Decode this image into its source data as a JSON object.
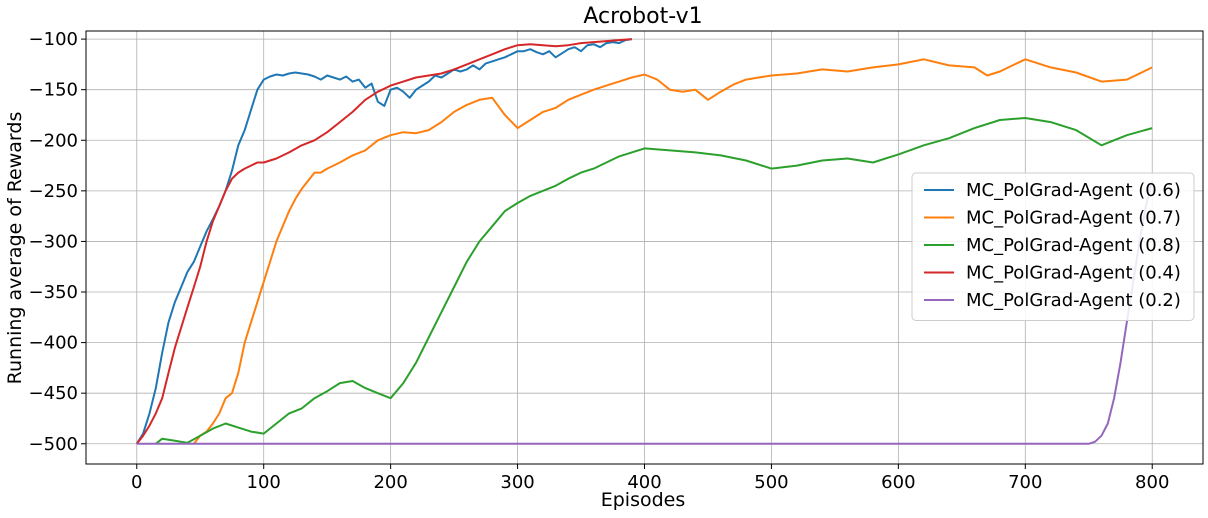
{
  "chart_data": {
    "type": "line",
    "title": "Acrobot-v1",
    "xlabel": "Episodes",
    "ylabel": "Running average of Rewards",
    "xlim": [
      -40,
      840
    ],
    "ylim": [
      -520,
      -92
    ],
    "xticks": [
      0,
      100,
      200,
      300,
      400,
      500,
      600,
      700,
      800
    ],
    "yticks": [
      -500,
      -450,
      -400,
      -350,
      -300,
      -250,
      -200,
      -150,
      -100
    ],
    "grid": true,
    "legend_position": "center-right",
    "series": [
      {
        "name": "MC_PolGrad-Agent (0.6)",
        "color": "#1f77b4",
        "x": [
          0,
          5,
          10,
          15,
          20,
          25,
          30,
          35,
          40,
          45,
          50,
          55,
          60,
          65,
          70,
          75,
          80,
          85,
          90,
          95,
          100,
          105,
          110,
          115,
          120,
          125,
          130,
          135,
          140,
          145,
          150,
          155,
          160,
          165,
          170,
          175,
          180,
          185,
          190,
          195,
          200,
          205,
          210,
          215,
          220,
          225,
          230,
          235,
          240,
          245,
          250,
          255,
          260,
          265,
          270,
          275,
          280,
          285,
          290,
          295,
          300,
          305,
          310,
          315,
          320,
          325,
          330,
          335,
          340,
          345,
          350,
          355,
          360,
          365,
          370,
          375,
          380,
          385,
          390
        ],
        "y": [
          -500,
          -490,
          -470,
          -445,
          -410,
          -380,
          -360,
          -345,
          -330,
          -320,
          -305,
          -290,
          -278,
          -265,
          -250,
          -230,
          -205,
          -190,
          -170,
          -150,
          -140,
          -137,
          -135,
          -136,
          -134,
          -133,
          -134,
          -135,
          -137,
          -140,
          -136,
          -138,
          -140,
          -137,
          -142,
          -140,
          -148,
          -144,
          -162,
          -166,
          -150,
          -148,
          -152,
          -158,
          -150,
          -146,
          -142,
          -136,
          -138,
          -134,
          -130,
          -132,
          -130,
          -126,
          -130,
          -124,
          -122,
          -120,
          -118,
          -115,
          -112,
          -112,
          -110,
          -113,
          -115,
          -112,
          -118,
          -114,
          -110,
          -108,
          -112,
          -106,
          -105,
          -108,
          -104,
          -103,
          -104,
          -101,
          -100
        ]
      },
      {
        "name": "MC_PolGrad-Agent (0.7)",
        "color": "#ff7f0e",
        "x": [
          45,
          50,
          55,
          60,
          65,
          70,
          75,
          80,
          85,
          90,
          95,
          100,
          105,
          110,
          115,
          120,
          125,
          130,
          135,
          140,
          145,
          150,
          160,
          170,
          180,
          190,
          200,
          210,
          220,
          230,
          240,
          250,
          260,
          270,
          280,
          290,
          300,
          310,
          320,
          330,
          340,
          350,
          360,
          370,
          380,
          390,
          400,
          410,
          420,
          430,
          440,
          450,
          460,
          470,
          480,
          490,
          500,
          520,
          540,
          560,
          580,
          600,
          620,
          640,
          660,
          670,
          680,
          690,
          700,
          720,
          740,
          760,
          780,
          800
        ],
        "y": [
          -500,
          -492,
          -488,
          -480,
          -470,
          -455,
          -450,
          -430,
          -400,
          -380,
          -360,
          -340,
          -320,
          -300,
          -285,
          -270,
          -258,
          -248,
          -240,
          -232,
          -232,
          -228,
          -222,
          -215,
          -210,
          -200,
          -195,
          -192,
          -193,
          -190,
          -182,
          -172,
          -165,
          -160,
          -158,
          -175,
          -188,
          -180,
          -172,
          -168,
          -160,
          -155,
          -150,
          -146,
          -142,
          -138,
          -135,
          -140,
          -150,
          -152,
          -150,
          -160,
          -152,
          -145,
          -140,
          -138,
          -136,
          -134,
          -130,
          -132,
          -128,
          -125,
          -120,
          -126,
          -128,
          -136,
          -132,
          -126,
          -120,
          -128,
          -133,
          -142,
          -140,
          -128
        ]
      },
      {
        "name": "MC_PolGrad-Agent (0.8)",
        "color": "#2ca02c",
        "x": [
          15,
          20,
          30,
          40,
          50,
          60,
          70,
          80,
          90,
          100,
          110,
          120,
          130,
          140,
          150,
          160,
          170,
          180,
          190,
          200,
          210,
          220,
          230,
          240,
          250,
          260,
          270,
          280,
          290,
          300,
          310,
          320,
          330,
          340,
          350,
          360,
          370,
          380,
          390,
          400,
          420,
          440,
          460,
          480,
          500,
          520,
          540,
          560,
          580,
          600,
          620,
          640,
          660,
          680,
          700,
          720,
          740,
          760,
          780,
          800
        ],
        "y": [
          -500,
          -495,
          -497,
          -499,
          -492,
          -485,
          -480,
          -484,
          -488,
          -490,
          -480,
          -470,
          -465,
          -455,
          -448,
          -440,
          -438,
          -445,
          -450,
          -455,
          -440,
          -420,
          -395,
          -370,
          -345,
          -320,
          -300,
          -285,
          -270,
          -262,
          -255,
          -250,
          -245,
          -238,
          -232,
          -228,
          -222,
          -216,
          -212,
          -208,
          -210,
          -212,
          -215,
          -220,
          -228,
          -225,
          -220,
          -218,
          -222,
          -214,
          -205,
          -198,
          -188,
          -180,
          -178,
          -182,
          -190,
          -205,
          -195,
          -188
        ]
      },
      {
        "name": "MC_PolGrad-Agent (0.4)",
        "color": "#d62728",
        "x": [
          0,
          5,
          10,
          15,
          20,
          25,
          30,
          35,
          40,
          45,
          50,
          55,
          60,
          65,
          70,
          75,
          80,
          85,
          90,
          95,
          100,
          110,
          120,
          130,
          140,
          150,
          160,
          170,
          180,
          190,
          200,
          210,
          220,
          230,
          240,
          250,
          260,
          270,
          280,
          290,
          300,
          310,
          320,
          330,
          340,
          350,
          360,
          370,
          380,
          390
        ],
        "y": [
          -500,
          -492,
          -482,
          -470,
          -455,
          -430,
          -405,
          -385,
          -365,
          -345,
          -325,
          -300,
          -280,
          -265,
          -250,
          -238,
          -232,
          -228,
          -225,
          -222,
          -222,
          -218,
          -212,
          -205,
          -200,
          -192,
          -182,
          -172,
          -160,
          -152,
          -146,
          -142,
          -138,
          -136,
          -134,
          -130,
          -125,
          -120,
          -115,
          -110,
          -106,
          -105,
          -106,
          -107,
          -106,
          -104,
          -103,
          -102,
          -101,
          -100
        ]
      },
      {
        "name": "MC_PolGrad-Agent (0.2)",
        "color": "#9467bd",
        "x": [
          0,
          100,
          200,
          300,
          400,
          500,
          600,
          700,
          750,
          755,
          760,
          765,
          770,
          775,
          780,
          785,
          790,
          795,
          800
        ],
        "y": [
          -500,
          -500,
          -500,
          -500,
          -500,
          -500,
          -500,
          -500,
          -500,
          -498,
          -492,
          -480,
          -455,
          -420,
          -380,
          -340,
          -300,
          -265,
          -240
        ]
      }
    ]
  }
}
